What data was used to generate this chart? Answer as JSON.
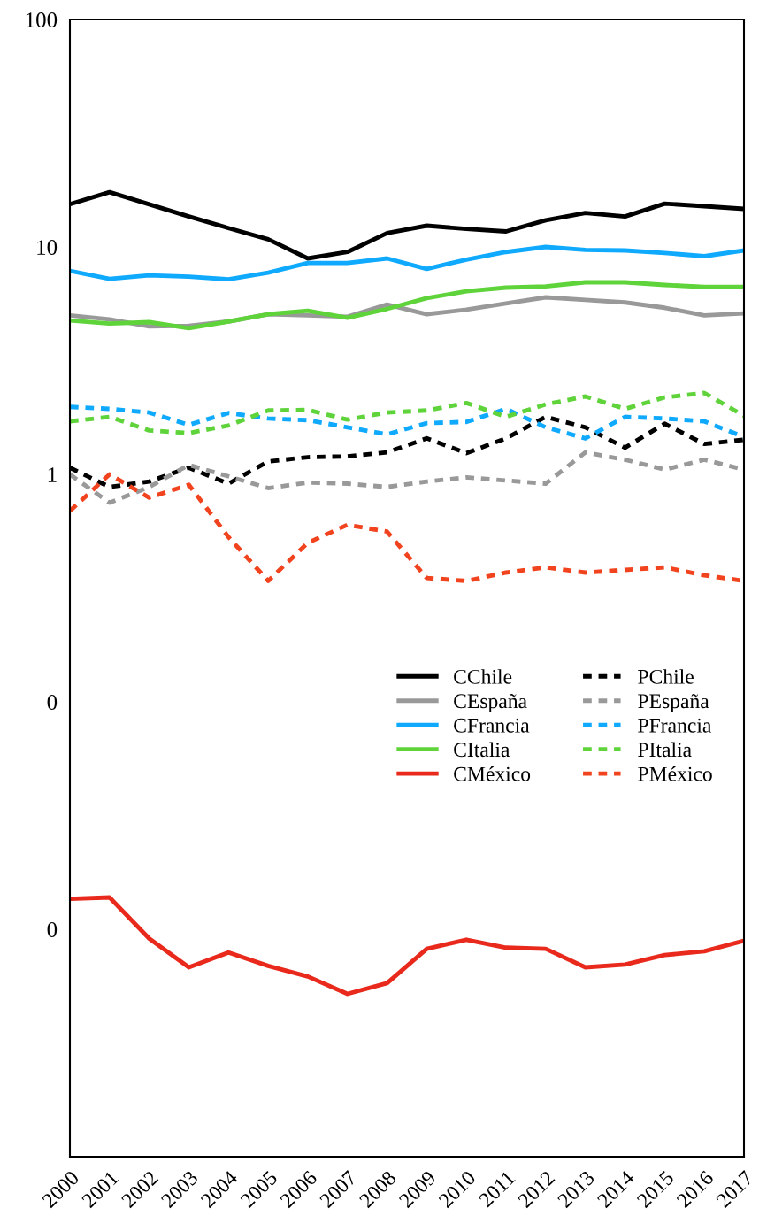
{
  "chart_data": {
    "type": "line",
    "log": "y",
    "grid": false,
    "legend": "right",
    "marker": "none",
    "categories": [
      "2000",
      "2001",
      "2002",
      "2003",
      "2004",
      "2005",
      "2006",
      "2007",
      "2008",
      "2009",
      "2010",
      "2011",
      "2012",
      "2013",
      "2014",
      "2015",
      "2016",
      "2017"
    ],
    "ylim": [
      0.001,
      100
    ],
    "yticks": [
      {
        "value": 0.01,
        "label": "0"
      },
      {
        "value": 0.1,
        "label": "0"
      },
      1,
      10,
      100
    ],
    "series": [
      {
        "name": "CChile",
        "color": "#000000",
        "line_style": "solid",
        "values": [
          15.4,
          17.4,
          15.4,
          13.6,
          12.1,
          10.8,
          8.9,
          9.5,
          11.5,
          12.4,
          12.0,
          11.7,
          13.1,
          14.1,
          13.6,
          15.5,
          15.1,
          14.7
        ]
      },
      {
        "name": "CEspaña",
        "color": "#999999",
        "line_style": "solid",
        "values": [
          5.0,
          4.8,
          4.47,
          4.5,
          4.7,
          5.06,
          5.0,
          4.93,
          5.58,
          5.06,
          5.3,
          5.64,
          6.0,
          5.85,
          5.7,
          5.4,
          5.0,
          5.1
        ]
      },
      {
        "name": "CFrancia",
        "color": "#0fa9fd",
        "line_style": "solid",
        "values": [
          7.85,
          7.24,
          7.5,
          7.4,
          7.2,
          7.7,
          8.5,
          8.5,
          8.9,
          8.0,
          8.8,
          9.5,
          10,
          9.7,
          9.65,
          9.4,
          9.1,
          9.65
        ]
      },
      {
        "name": "CItalia",
        "color": "#5fd33a",
        "line_style": "solid",
        "values": [
          4.75,
          4.6,
          4.67,
          4.39,
          4.7,
          5.06,
          5.24,
          4.88,
          5.34,
          5.95,
          6.38,
          6.62,
          6.7,
          6.99,
          6.99,
          6.8,
          6.67,
          6.67
        ]
      },
      {
        "name": "CMéxico",
        "color": "#e8291c",
        "line_style": "solid",
        "values": [
          0.0136,
          0.0138,
          0.0091,
          0.0068,
          0.0079,
          0.0069,
          0.0062,
          0.0052,
          0.0058,
          0.0082,
          0.009,
          0.0083,
          0.0082,
          0.0068,
          0.007,
          0.0077,
          0.008,
          0.0089
        ]
      },
      {
        "name": "PChile",
        "color": "#000000",
        "line_style": "dashed",
        "values": [
          1.07,
          0.88,
          0.93,
          1.07,
          0.91,
          1.14,
          1.19,
          1.2,
          1.25,
          1.44,
          1.24,
          1.44,
          1.79,
          1.61,
          1.31,
          1.67,
          1.36,
          1.42
        ]
      },
      {
        "name": "PEspaña",
        "color": "#999999",
        "line_style": "dashed",
        "values": [
          1.0,
          0.75,
          0.88,
          1.1,
          0.98,
          0.87,
          0.92,
          0.91,
          0.88,
          0.93,
          0.97,
          0.94,
          0.91,
          1.25,
          1.16,
          1.05,
          1.16,
          1.05
        ]
      },
      {
        "name": "PFrancia",
        "color": "#0fa9fd",
        "line_style": "dashed",
        "values": [
          1.98,
          1.94,
          1.87,
          1.65,
          1.86,
          1.76,
          1.73,
          1.61,
          1.5,
          1.68,
          1.7,
          1.94,
          1.61,
          1.44,
          1.79,
          1.76,
          1.71,
          1.46
        ]
      },
      {
        "name": "PItalia",
        "color": "#5fd33a",
        "line_style": "dashed",
        "values": [
          1.71,
          1.79,
          1.56,
          1.52,
          1.64,
          1.91,
          1.92,
          1.74,
          1.87,
          1.91,
          2.06,
          1.79,
          2.03,
          2.2,
          1.94,
          2.18,
          2.28,
          1.81
        ]
      },
      {
        "name": "PMéxico",
        "color": "#f2431f",
        "line_style": "dashed",
        "values": [
          0.69,
          1.0,
          0.79,
          0.9,
          0.53,
          0.34,
          0.5,
          0.6,
          0.56,
          0.35,
          0.34,
          0.37,
          0.39,
          0.37,
          0.38,
          0.39,
          0.36,
          0.34
        ]
      }
    ]
  }
}
